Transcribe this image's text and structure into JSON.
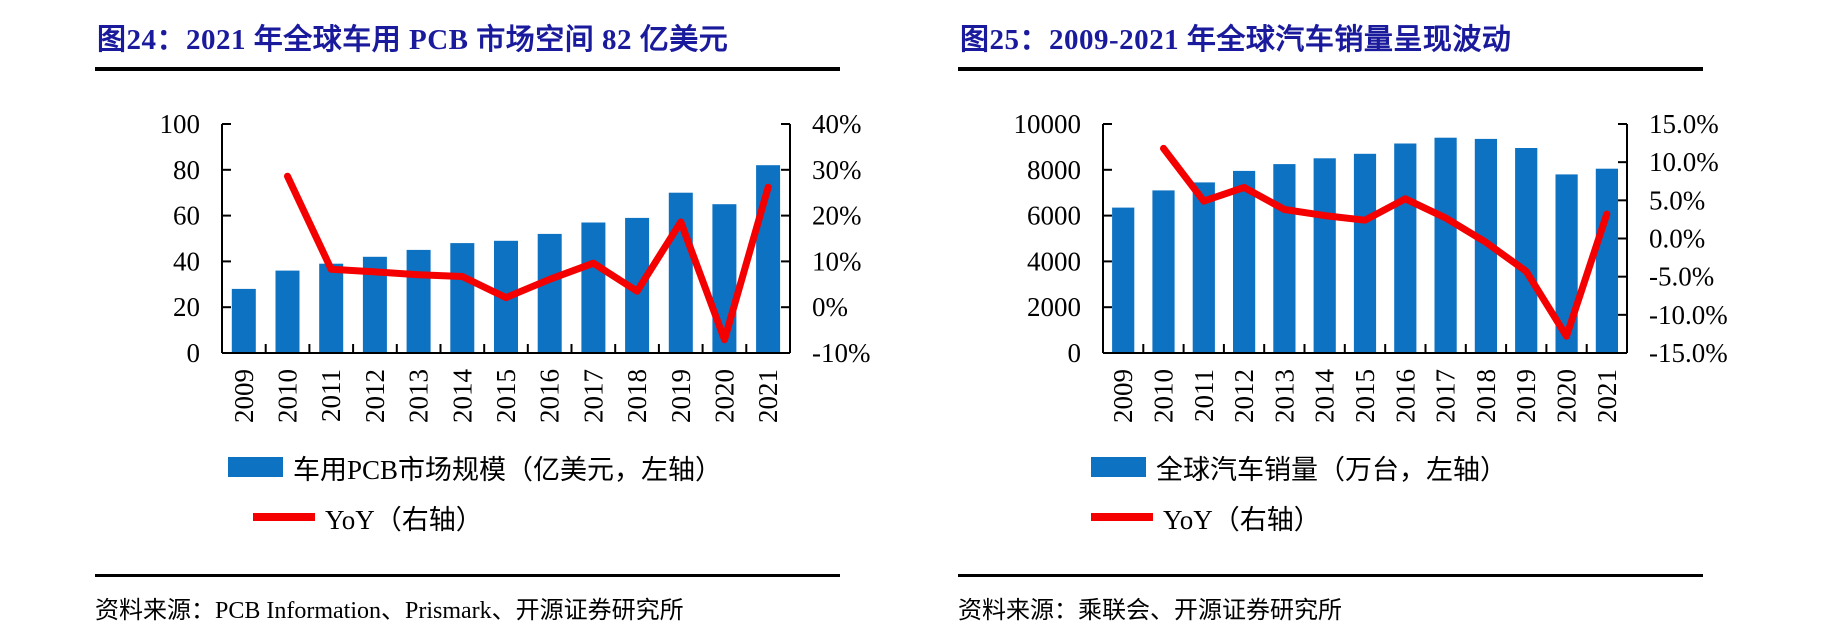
{
  "colors": {
    "title_navy": "#1a1a9c",
    "bar_blue": "#0d72c2",
    "line_red": "#f40000",
    "axis_black": "#000000"
  },
  "chart_data": [
    {
      "type": "bar",
      "title": "图24：2021 年全球车用 PCB 市场空间 82 亿美元",
      "categories": [
        "2009",
        "2010",
        "2011",
        "2012",
        "2013",
        "2014",
        "2015",
        "2016",
        "2017",
        "2018",
        "2019",
        "2020",
        "2021"
      ],
      "series": [
        {
          "name": "车用PCB市场规模（亿美元，左轴）",
          "type": "bar",
          "axis": "left",
          "color": "#0d72c2",
          "values": [
            28,
            36,
            39,
            42,
            45,
            48,
            49,
            52,
            57,
            59,
            70,
            65,
            82
          ]
        },
        {
          "name": "YoY（右轴）",
          "type": "line",
          "axis": "right",
          "color": "#f40000",
          "values": [
            null,
            28.6,
            8.3,
            7.7,
            7.1,
            6.7,
            2.1,
            6.1,
            9.6,
            3.5,
            18.6,
            -7.1,
            26.2
          ]
        }
      ],
      "left_axis": {
        "min": 0,
        "max": 100,
        "tick_labels": [
          "0",
          "20",
          "40",
          "60",
          "80",
          "100"
        ]
      },
      "right_axis": {
        "min": -10,
        "max": 40,
        "tick_labels": [
          "-10%",
          "0%",
          "10%",
          "20%",
          "30%",
          "40%"
        ]
      },
      "grid": false,
      "legend_position": "bottom",
      "source": "资料来源：PCB Information、Prismark、开源证券研究所"
    },
    {
      "type": "bar",
      "title": "图25：2009-2021 年全球汽车销量呈现波动",
      "categories": [
        "2009",
        "2010",
        "2011",
        "2012",
        "2013",
        "2014",
        "2015",
        "2016",
        "2017",
        "2018",
        "2019",
        "2020",
        "2021"
      ],
      "series": [
        {
          "name": "全球汽车销量（万台，左轴）",
          "type": "bar",
          "axis": "left",
          "color": "#0d72c2",
          "values": [
            6350,
            7100,
            7450,
            7950,
            8250,
            8500,
            8700,
            9150,
            9400,
            9350,
            8950,
            7800,
            8050
          ]
        },
        {
          "name": "YoY（右轴）",
          "type": "line",
          "axis": "right",
          "color": "#f40000",
          "values": [
            null,
            11.8,
            4.9,
            6.7,
            3.8,
            3.0,
            2.4,
            5.2,
            2.7,
            -0.5,
            -4.3,
            -12.8,
            3.2
          ]
        }
      ],
      "left_axis": {
        "min": 0,
        "max": 10000,
        "tick_labels": [
          "0",
          "2000",
          "4000",
          "6000",
          "8000",
          "10000"
        ]
      },
      "right_axis": {
        "min": -15,
        "max": 15,
        "tick_labels": [
          "-15.0%",
          "-10.0%",
          "-5.0%",
          "0.0%",
          "5.0%",
          "10.0%",
          "15.0%"
        ]
      },
      "grid": false,
      "legend_position": "bottom",
      "source": "资料来源：乘联会、开源证券研究所"
    }
  ]
}
